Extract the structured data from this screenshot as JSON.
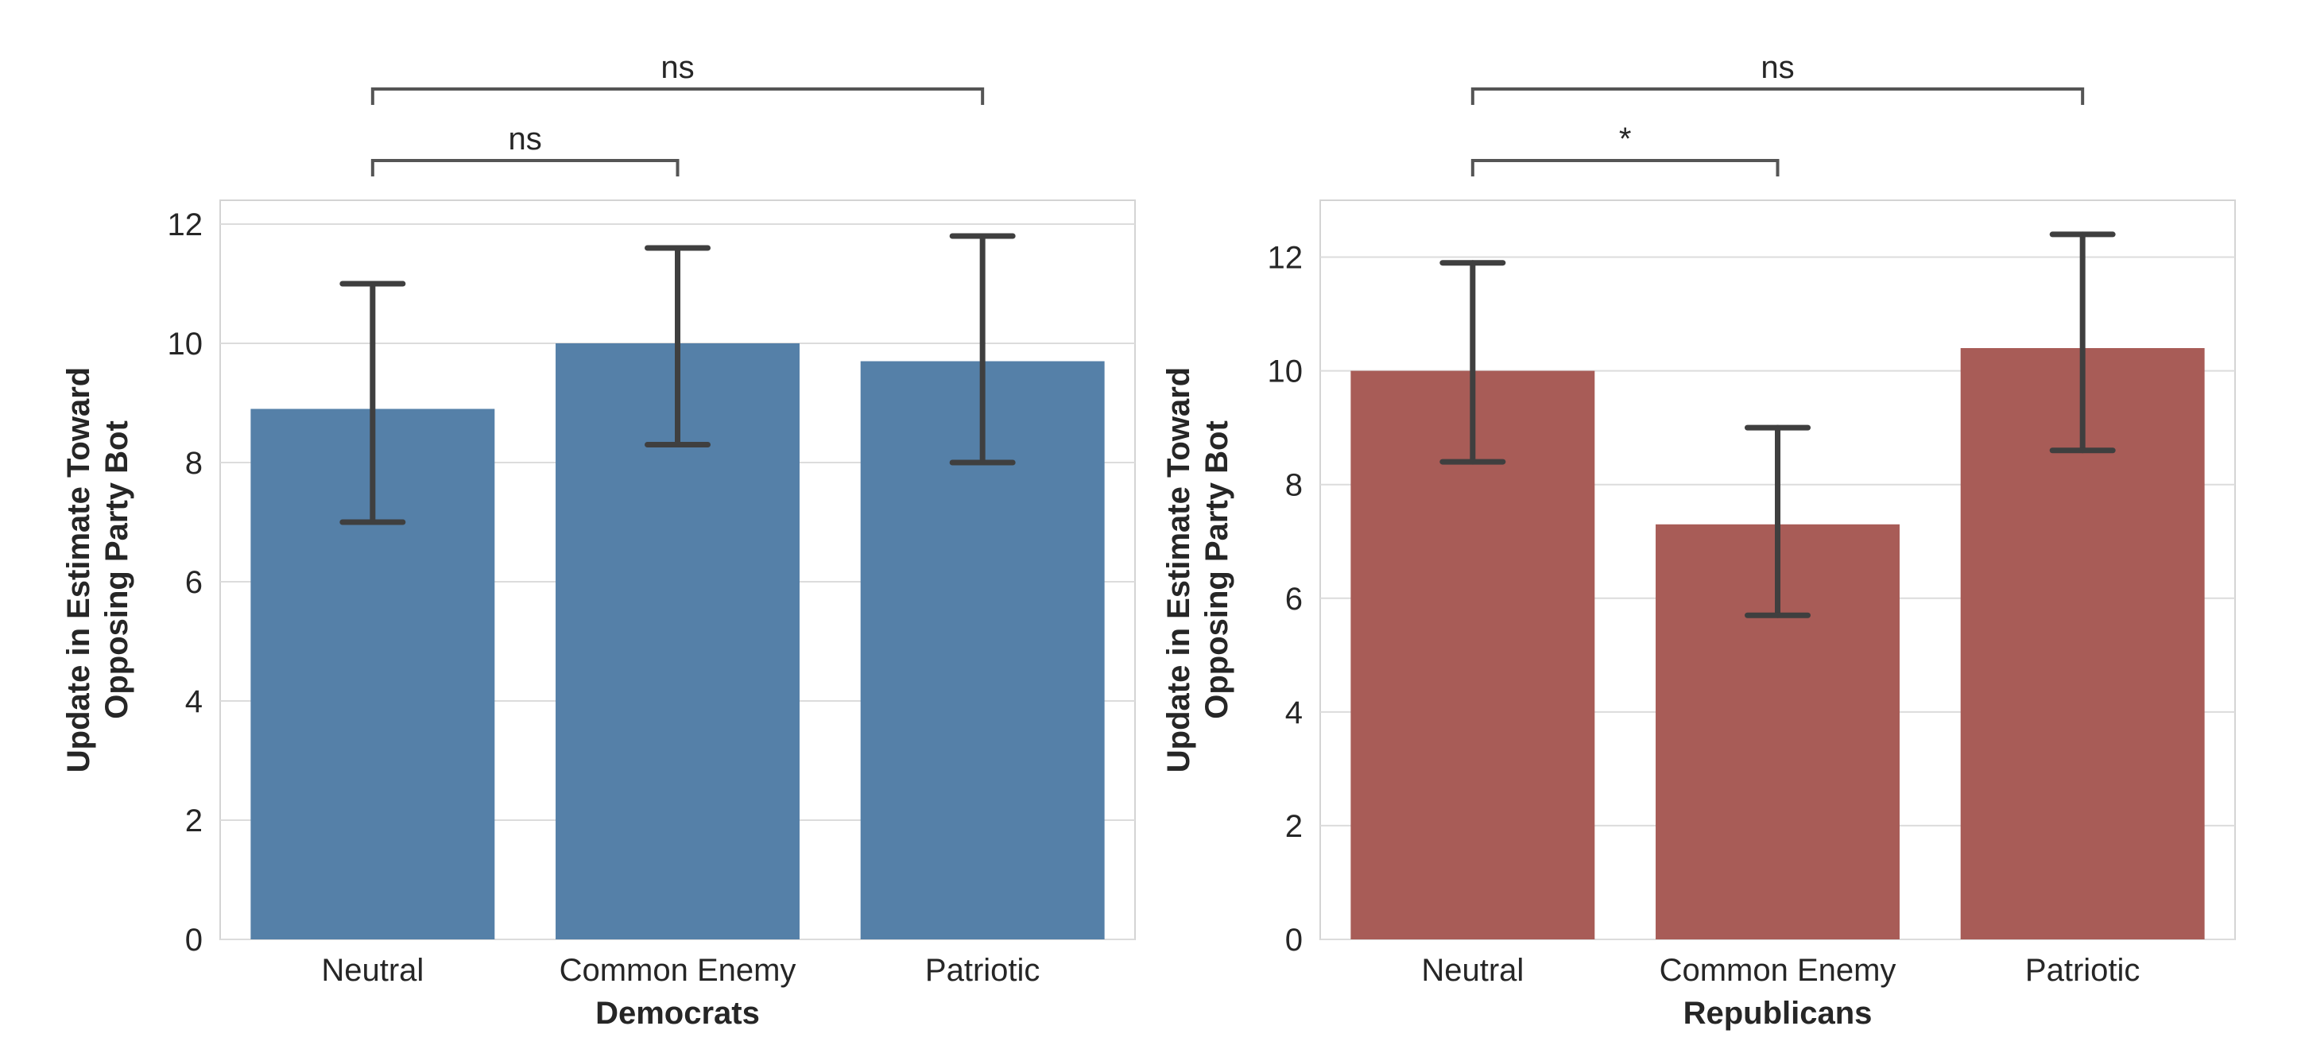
{
  "chart_data": [
    {
      "type": "bar",
      "xlabel": "Democrats",
      "ylabel_lines": [
        "Update in Estimate Toward",
        "Opposing Party Bot"
      ],
      "categories": [
        "Neutral",
        "Common Enemy",
        "Patriotic"
      ],
      "values": [
        8.9,
        10.0,
        9.7
      ],
      "error_low": [
        7.0,
        8.3,
        8.0
      ],
      "error_high": [
        11.0,
        11.6,
        11.8
      ],
      "ylim": [
        0,
        12.4
      ],
      "yticks": [
        "0",
        "2",
        "4",
        "6",
        "8",
        "10",
        "12"
      ],
      "grid": true,
      "bar_color": "#5580A8",
      "significance": [
        {
          "from": 0,
          "to": 1,
          "label": "ns"
        },
        {
          "from": 0,
          "to": 2,
          "label": "ns"
        }
      ]
    },
    {
      "type": "bar",
      "xlabel": "Republicans",
      "ylabel_lines": [
        "Update in Estimate Toward",
        "Opposing Party Bot"
      ],
      "categories": [
        "Neutral",
        "Common Enemy",
        "Patriotic"
      ],
      "values": [
        10.0,
        7.3,
        10.4
      ],
      "error_low": [
        8.4,
        5.7,
        8.6
      ],
      "error_high": [
        11.9,
        9.0,
        12.4
      ],
      "ylim": [
        0,
        13.0
      ],
      "yticks": [
        "0",
        "2",
        "4",
        "6",
        "8",
        "10",
        "12"
      ],
      "grid": true,
      "bar_color": "#A85C57",
      "significance": [
        {
          "from": 0,
          "to": 1,
          "label": "*"
        },
        {
          "from": 0,
          "to": 2,
          "label": "ns"
        }
      ]
    }
  ]
}
